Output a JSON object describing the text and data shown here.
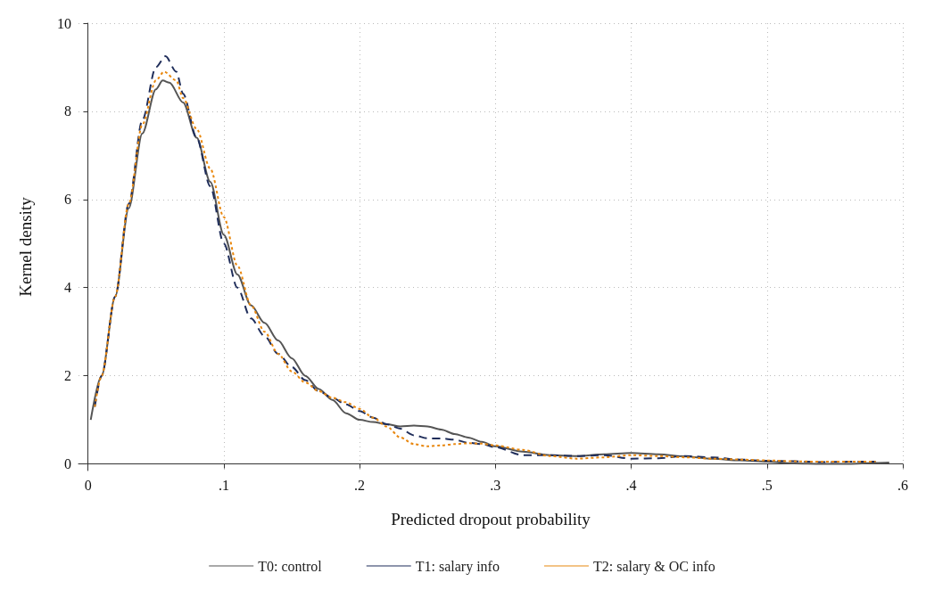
{
  "chart_data": {
    "type": "line",
    "xlabel": "Predicted dropout probability",
    "ylabel": "Kernel density",
    "xlim": [
      -0.007,
      0.6
    ],
    "ylim": [
      -0.15,
      10
    ],
    "xticks": [
      0,
      {
        "value": 0.1,
        "label": ".1"
      },
      {
        "value": 0.2,
        "label": ".2"
      },
      {
        "value": 0.3,
        "label": ".3"
      },
      {
        "value": 0.4,
        "label": ".4"
      },
      {
        "value": 0.5,
        "label": ".5"
      },
      {
        "value": 0.6,
        "label": ".6"
      }
    ],
    "yticks": [
      0,
      2,
      4,
      6,
      8,
      10
    ],
    "grid": true,
    "legend": "bottom",
    "marker": "none",
    "series": [
      {
        "name": "T0: control",
        "color": "#555555",
        "line_style": "solid",
        "x": [
          0.002,
          0.01,
          0.02,
          0.03,
          0.04,
          0.05,
          0.055,
          0.06,
          0.07,
          0.08,
          0.09,
          0.1,
          0.11,
          0.12,
          0.13,
          0.14,
          0.15,
          0.16,
          0.17,
          0.18,
          0.19,
          0.2,
          0.21,
          0.22,
          0.23,
          0.24,
          0.25,
          0.26,
          0.27,
          0.28,
          0.29,
          0.3,
          0.32,
          0.34,
          0.36,
          0.38,
          0.4,
          0.42,
          0.44,
          0.46,
          0.48,
          0.5,
          0.52,
          0.54,
          0.56,
          0.58,
          0.59
        ],
        "values": [
          1.0,
          2.0,
          3.8,
          5.8,
          7.5,
          8.5,
          8.7,
          8.65,
          8.2,
          7.4,
          6.4,
          5.2,
          4.3,
          3.6,
          3.2,
          2.8,
          2.4,
          2.0,
          1.7,
          1.45,
          1.15,
          1.0,
          0.95,
          0.9,
          0.85,
          0.87,
          0.85,
          0.78,
          0.68,
          0.6,
          0.5,
          0.4,
          0.28,
          0.2,
          0.18,
          0.22,
          0.25,
          0.22,
          0.17,
          0.12,
          0.08,
          0.05,
          0.01,
          0.0,
          0.0,
          0.02,
          0.03
        ]
      },
      {
        "name": "T1: salary info",
        "color": "#1f2d5a",
        "line_style": "dashed",
        "x": [
          0.005,
          0.01,
          0.02,
          0.03,
          0.04,
          0.05,
          0.057,
          0.065,
          0.07,
          0.08,
          0.09,
          0.1,
          0.11,
          0.12,
          0.13,
          0.14,
          0.15,
          0.16,
          0.17,
          0.18,
          0.19,
          0.2,
          0.21,
          0.22,
          0.23,
          0.24,
          0.25,
          0.26,
          0.27,
          0.28,
          0.29,
          0.3,
          0.32,
          0.34,
          0.36,
          0.38,
          0.4,
          0.42,
          0.44,
          0.46,
          0.48,
          0.5,
          0.52,
          0.54,
          0.56,
          0.58
        ],
        "values": [
          1.3,
          2.0,
          3.8,
          5.9,
          7.8,
          9.0,
          9.25,
          8.9,
          8.4,
          7.4,
          6.3,
          5.0,
          4.0,
          3.3,
          2.9,
          2.5,
          2.2,
          1.9,
          1.65,
          1.5,
          1.35,
          1.2,
          1.05,
          0.9,
          0.8,
          0.65,
          0.58,
          0.58,
          0.55,
          0.48,
          0.45,
          0.38,
          0.2,
          0.2,
          0.18,
          0.2,
          0.12,
          0.13,
          0.18,
          0.15,
          0.1,
          0.07,
          0.06,
          0.04,
          0.05,
          0.05
        ]
      },
      {
        "name": "T2: salary & OC info",
        "color": "#e8870e",
        "line_style": "dotted",
        "x": [
          0.005,
          0.01,
          0.02,
          0.03,
          0.04,
          0.05,
          0.056,
          0.065,
          0.07,
          0.08,
          0.09,
          0.1,
          0.11,
          0.12,
          0.13,
          0.14,
          0.15,
          0.16,
          0.17,
          0.18,
          0.19,
          0.2,
          0.21,
          0.22,
          0.23,
          0.24,
          0.25,
          0.26,
          0.27,
          0.28,
          0.29,
          0.3,
          0.32,
          0.34,
          0.36,
          0.38,
          0.4,
          0.42,
          0.44,
          0.46,
          0.48,
          0.5,
          0.52,
          0.54,
          0.56,
          0.58
        ],
        "values": [
          1.3,
          2.0,
          3.8,
          5.9,
          7.7,
          8.7,
          8.9,
          8.7,
          8.3,
          7.6,
          6.7,
          5.6,
          4.5,
          3.6,
          3.0,
          2.5,
          2.1,
          1.85,
          1.65,
          1.5,
          1.4,
          1.25,
          1.05,
          0.85,
          0.6,
          0.45,
          0.4,
          0.42,
          0.45,
          0.47,
          0.46,
          0.42,
          0.32,
          0.18,
          0.12,
          0.15,
          0.2,
          0.18,
          0.15,
          0.12,
          0.1,
          0.08,
          0.06,
          0.05,
          0.05,
          0.05
        ]
      }
    ]
  }
}
